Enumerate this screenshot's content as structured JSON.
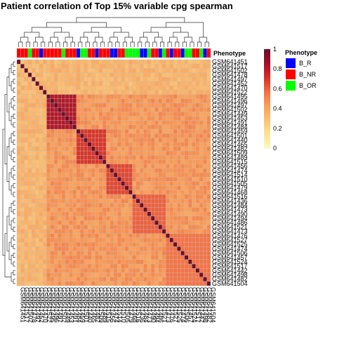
{
  "chart_data": {
    "type": "heatmap",
    "title": "Patient correlation of Top 15% variable cpg spearman",
    "annotation_track_label": "Phenotype",
    "samples": [
      "GSM641451",
      "GSM641517",
      "GSM641502",
      "GSM641478",
      "GSM641497",
      "GSM641452",
      "GSM641470",
      "GSM641522",
      "GSM641495",
      "GSM641496",
      "GSM641497",
      "GSM641502",
      "GSM641449",
      "GSM641453",
      "GSM641491",
      "GSM641484",
      "GSM641459",
      "GSM641501",
      "GSM641440",
      "GSM641465",
      "GSM641482",
      "GSM641509",
      "GSM641489",
      "GSM641515",
      "GSM641456",
      "GSM641474",
      "GSM641514",
      "GSM641510",
      "GSM641505",
      "GSM641479",
      "GSM641468",
      "GSM641516",
      "GSM641436",
      "GSM641484",
      "GSM641473",
      "GSM641490",
      "GSM641494",
      "GSM641486",
      "GSM641521",
      "GSM641473",
      "GSM641476",
      "GSM641527",
      "GSM641525",
      "GSM641474",
      "GSM641506",
      "GSM641457",
      "GSM641524",
      "GSM641517",
      "GSM641442",
      "GSM641498",
      "GSM641482",
      "GSM641504"
    ],
    "column_phenotypes": [
      "B_NR",
      "B_NR",
      "B_NR",
      "B_OR",
      "B_NR",
      "B_NR",
      "B_R",
      "B_NR",
      "B_NR",
      "B_NR",
      "B_NR",
      "B_NR",
      "B_OR",
      "B_NR",
      "B_NR",
      "B_NR",
      "B_R",
      "B_OR",
      "B_OR",
      "B_NR",
      "B_NR",
      "B_R",
      "B_NR",
      "B_NR",
      "B_NR",
      "B_R",
      "B_R",
      "B_NR",
      "B_NR",
      "B_OR",
      "B_OR",
      "B_OR",
      "B_OR",
      "B_R",
      "B_R",
      "B_OR",
      "B_NR",
      "B_NR",
      "B_R",
      "B_OR",
      "B_NR",
      "B_R",
      "B_NR",
      "B_NR",
      "B_R",
      "B_OR",
      "B_OR",
      "B_NR",
      "B_NR",
      "B_OR",
      "B_R",
      "B_NR"
    ],
    "block_structure": [
      {
        "members": "rows 9-16",
        "value": 0.82
      },
      {
        "members": "rows 17-24",
        "value": 0.7
      },
      {
        "members": "rows 25-31",
        "value": 0.66
      },
      {
        "members": "rows 32-40",
        "value": 0.6
      },
      {
        "members": "rows 41-52",
        "value": 0.55
      }
    ],
    "diagonal_value": 1.0,
    "background_value": 0.45,
    "color_scale": {
      "min": 0,
      "max": 1,
      "ticks": [
        "0",
        "0.2",
        "0.4",
        "0.6",
        "0.8",
        "1"
      ],
      "stops": [
        "#fff6bc",
        "#fee193",
        "#fdbf71",
        "#fb9e58",
        "#f46d43",
        "#d73027",
        "#a50f28",
        "#6b0f2a"
      ]
    },
    "legend": {
      "title": "Phenotype",
      "items": [
        {
          "label": "B_R",
          "color": "#0000ff"
        },
        {
          "label": "B_NR",
          "color": "#ff0000"
        },
        {
          "label": "B_OR",
          "color": "#00ff00"
        }
      ],
      "placement": "right"
    }
  }
}
